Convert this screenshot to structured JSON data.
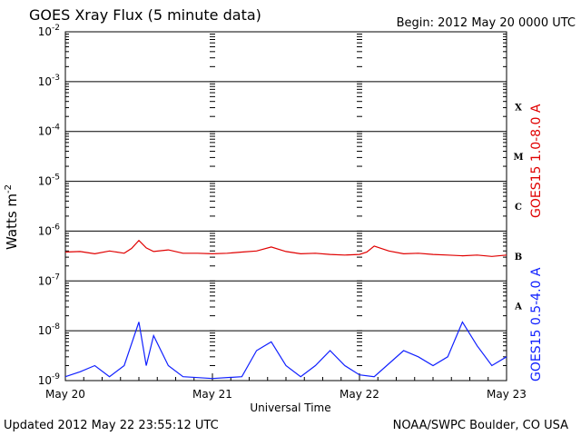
{
  "header": {
    "title": "GOES Xray Flux (5 minute data)",
    "begin": "Begin:  2012 May 20 0000 UTC"
  },
  "footer": {
    "updated": "Updated 2012 May 22 23:55:12 UTC",
    "credit": "NOAA/SWPC Boulder, CO USA"
  },
  "colors": {
    "long": "#e00000",
    "short": "#1020ff"
  },
  "chart_data": {
    "type": "line",
    "title": "GOES Xray Flux (5 minute data)",
    "xlabel": "Universal Time",
    "ylabel": "Watts m",
    "ylabel_exp": "-2",
    "yscale": "log",
    "ylim": [
      1e-09,
      0.01
    ],
    "xlim_days": [
      0,
      3
    ],
    "x_ticks": [
      "May 20",
      "May 21",
      "May 22",
      "May 23"
    ],
    "y_ticks": [
      {
        "base": "10",
        "exp": "-2"
      },
      {
        "base": "10",
        "exp": "-3"
      },
      {
        "base": "10",
        "exp": "-4"
      },
      {
        "base": "10",
        "exp": "-5"
      },
      {
        "base": "10",
        "exp": "-6"
      },
      {
        "base": "10",
        "exp": "-7"
      },
      {
        "base": "10",
        "exp": "-8"
      },
      {
        "base": "10",
        "exp": "-9"
      }
    ],
    "flare_classes": [
      "X",
      "M",
      "C",
      "B",
      "A"
    ],
    "grid": true,
    "series": [
      {
        "name": "GOES15 1.0-8.0 A",
        "color": "#e00000",
        "points": [
          [
            0,
            3.8e-07
          ],
          [
            0.1,
            3.9e-07
          ],
          [
            0.2,
            3.5e-07
          ],
          [
            0.3,
            4e-07
          ],
          [
            0.4,
            3.6e-07
          ],
          [
            0.45,
            4.5e-07
          ],
          [
            0.5,
            6.5e-07
          ],
          [
            0.55,
            4.6e-07
          ],
          [
            0.6,
            3.9e-07
          ],
          [
            0.7,
            4.2e-07
          ],
          [
            0.8,
            3.6e-07
          ],
          [
            0.9,
            3.6e-07
          ],
          [
            1.0,
            3.5e-07
          ],
          [
            1.1,
            3.6e-07
          ],
          [
            1.2,
            3.8e-07
          ],
          [
            1.3,
            4e-07
          ],
          [
            1.4,
            4.8e-07
          ],
          [
            1.5,
            3.9e-07
          ],
          [
            1.6,
            3.5e-07
          ],
          [
            1.7,
            3.6e-07
          ],
          [
            1.8,
            3.4e-07
          ],
          [
            1.9,
            3.3e-07
          ],
          [
            2.0,
            3.4e-07
          ],
          [
            2.05,
            3.8e-07
          ],
          [
            2.1,
            5e-07
          ],
          [
            2.2,
            4e-07
          ],
          [
            2.3,
            3.5e-07
          ],
          [
            2.4,
            3.6e-07
          ],
          [
            2.5,
            3.4e-07
          ],
          [
            2.6,
            3.3e-07
          ],
          [
            2.7,
            3.2e-07
          ],
          [
            2.8,
            3.3e-07
          ],
          [
            2.9,
            3.1e-07
          ],
          [
            3.0,
            3.3e-07
          ]
        ]
      },
      {
        "name": "GOES15 0.5-4.0 A",
        "color": "#1020ff",
        "points": [
          [
            0,
            1.2e-09
          ],
          [
            0.1,
            1.5e-09
          ],
          [
            0.2,
            2e-09
          ],
          [
            0.3,
            1.2e-09
          ],
          [
            0.4,
            2e-09
          ],
          [
            0.5,
            1.5e-08
          ],
          [
            0.55,
            2e-09
          ],
          [
            0.6,
            8e-09
          ],
          [
            0.7,
            2e-09
          ],
          [
            0.8,
            1.2e-09
          ],
          [
            1.0,
            1.1e-09
          ],
          [
            1.2,
            1.2e-09
          ],
          [
            1.3,
            4e-09
          ],
          [
            1.4,
            6e-09
          ],
          [
            1.5,
            2e-09
          ],
          [
            1.6,
            1.2e-09
          ],
          [
            1.7,
            2e-09
          ],
          [
            1.8,
            4e-09
          ],
          [
            1.9,
            2e-09
          ],
          [
            2.0,
            1.3e-09
          ],
          [
            2.1,
            1.2e-09
          ],
          [
            2.3,
            4e-09
          ],
          [
            2.4,
            3e-09
          ],
          [
            2.5,
            2e-09
          ],
          [
            2.6,
            3e-09
          ],
          [
            2.7,
            1.5e-08
          ],
          [
            2.8,
            5e-09
          ],
          [
            2.9,
            2e-09
          ],
          [
            3.0,
            3e-09
          ]
        ]
      }
    ]
  }
}
